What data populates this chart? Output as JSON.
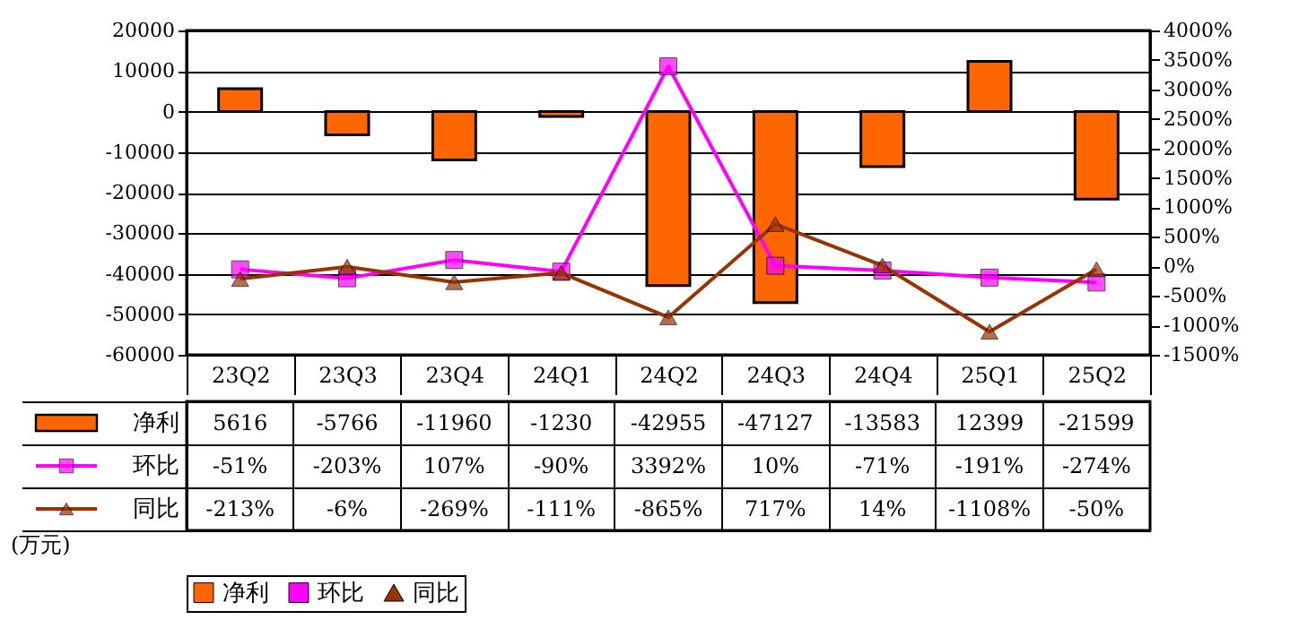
{
  "chart_data": {
    "type": "bar",
    "categories": [
      "23Q2",
      "23Q3",
      "23Q4",
      "24Q1",
      "24Q2",
      "24Q3",
      "24Q4",
      "25Q1",
      "25Q2"
    ],
    "series": [
      {
        "name": "净利",
        "color": "#ff6600",
        "values": [
          5616,
          -5766,
          -11960,
          -1230,
          -42955,
          -47127,
          -13583,
          12399,
          -21599
        ],
        "value_labels": [
          "5616",
          "-5766",
          "-11960",
          "-1230",
          "-42955",
          "-47127",
          "-13583",
          "12399",
          "-21599"
        ]
      },
      {
        "name": "环比",
        "type": "line",
        "axis": "y2",
        "marker": "square",
        "color": "#ff00ff",
        "values": [
          -51,
          -203,
          107,
          -90,
          3392,
          10,
          -71,
          -191,
          -274
        ],
        "value_labels": [
          "-51%",
          "-203%",
          "107%",
          "-90%",
          "3392%",
          "10%",
          "-71%",
          "-191%",
          "-274%"
        ]
      },
      {
        "name": "同比",
        "type": "line",
        "axis": "y2",
        "marker": "triangle",
        "color": "#993300",
        "values": [
          -213,
          -6,
          -269,
          -111,
          -865,
          717,
          14,
          -1108,
          -50
        ],
        "value_labels": [
          "-213%",
          "-6%",
          "-269%",
          "-111%",
          "-865%",
          "717%",
          "14%",
          "-1108%",
          "-50%"
        ]
      }
    ],
    "ylim": [
      -60000,
      20000
    ],
    "yticks": [
      -60000,
      -50000,
      -40000,
      -30000,
      -20000,
      -10000,
      0,
      10000,
      20000
    ],
    "y2lim": [
      -1500,
      4000
    ],
    "y2ticks": [
      {
        "value": -1500,
        "label": "-1500%"
      },
      {
        "value": -1000,
        "label": "-1000%"
      },
      {
        "value": -500,
        "label": "-500%"
      },
      {
        "value": 0,
        "label": "0%"
      },
      {
        "value": 500,
        "label": "500%"
      },
      {
        "value": 1000,
        "label": "1000%"
      },
      {
        "value": 1500,
        "label": "1500%"
      },
      {
        "value": 2000,
        "label": "2000%"
      },
      {
        "value": 2500,
        "label": "2500%"
      },
      {
        "value": 3000,
        "label": "3000%"
      },
      {
        "value": 3500,
        "label": "3500%"
      },
      {
        "value": 4000,
        "label": "4000%"
      }
    ],
    "grid": "y",
    "legend": "bottom",
    "line_style": "solid",
    "annotations": [
      "(万元)"
    ]
  }
}
